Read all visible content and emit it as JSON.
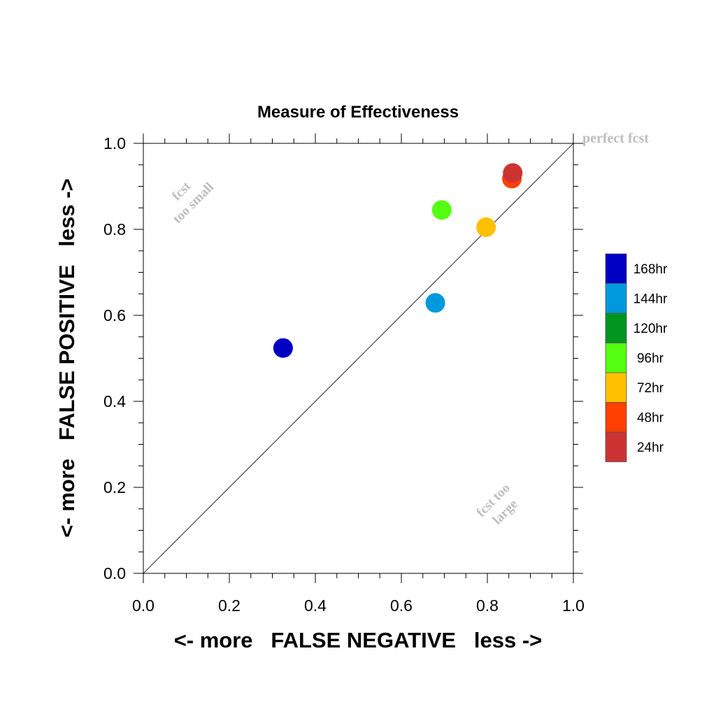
{
  "chart_data": {
    "type": "scatter",
    "title": "Measure of Effectiveness",
    "xlabel": "<- more   FALSE NEGATIVE   less ->",
    "ylabel": "<- more   FALSE POSITIVE   less ->",
    "xlim": [
      0,
      1
    ],
    "ylim": [
      0,
      1
    ],
    "xticks": [
      "0.0",
      "0.2",
      "0.4",
      "0.6",
      "0.8",
      "1.0"
    ],
    "yticks": [
      "0.0",
      "0.2",
      "0.4",
      "0.6",
      "0.8",
      "1.0"
    ],
    "grid": false,
    "reference_line": "diagonal y = x",
    "legend_position": "right",
    "annotations": {
      "perfect": "perfect fcst",
      "too_small": [
        "fcst",
        "too small"
      ],
      "too_large": [
        "fcst too",
        "large"
      ]
    },
    "series": [
      {
        "name": "168hr",
        "color": "#0000c4",
        "x": 0.325,
        "y": 0.524
      },
      {
        "name": "144hr",
        "color": "#0099dd",
        "x": 0.679,
        "y": 0.629
      },
      {
        "name": "120hr",
        "color": "#009620",
        "x": null,
        "y": null
      },
      {
        "name": "96hr",
        "color": "#55ff11",
        "x": 0.694,
        "y": 0.845
      },
      {
        "name": "72hr",
        "color": "#ffc000",
        "x": 0.797,
        "y": 0.805
      },
      {
        "name": "48hr",
        "color": "#ff4000",
        "x": 0.857,
        "y": 0.918
      },
      {
        "name": "24hr",
        "color": "#cc3333",
        "x": 0.859,
        "y": 0.931
      }
    ],
    "legend_order": [
      "168hr",
      "144hr",
      "120hr",
      "96hr",
      "72hr",
      "48hr",
      "24hr"
    ]
  }
}
